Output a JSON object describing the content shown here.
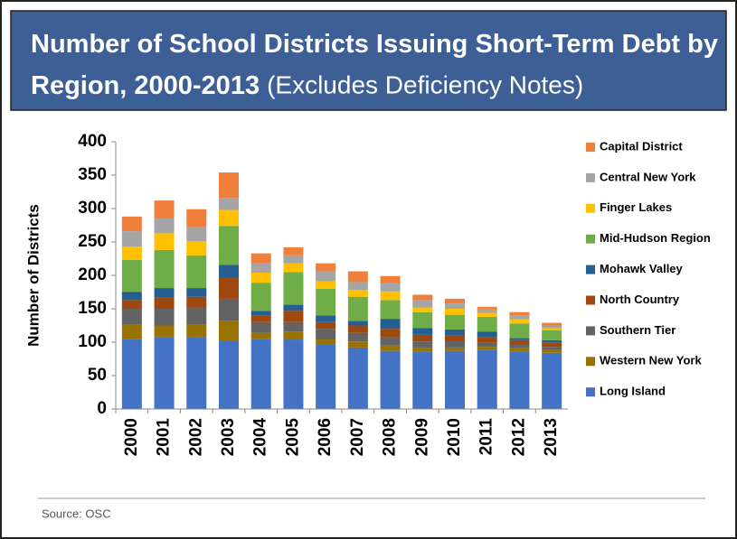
{
  "chart_data": {
    "type": "stacked_bar",
    "title": "Number of School Districts Issuing Short-Term Debt by Region, 2000-2013",
    "subtitle": "(Excludes Deficiency Notes)",
    "ylabel": "Number of Districts",
    "source": "Source: OSC",
    "categories": [
      "2000",
      "2001",
      "2002",
      "2003",
      "2004",
      "2005",
      "2006",
      "2007",
      "2008",
      "2009",
      "2010",
      "2011",
      "2012",
      "2013"
    ],
    "ylim": [
      0,
      400
    ],
    "yticks": [
      0,
      50,
      100,
      150,
      200,
      250,
      300,
      350,
      400
    ],
    "series": [
      {
        "name": "Long Island",
        "color": "#4472c4",
        "values": [
          105,
          108,
          108,
          102,
          105,
          104,
          96,
          92,
          87,
          86,
          87,
          88,
          86,
          84
        ]
      },
      {
        "name": "Western New York",
        "color": "#997300",
        "values": [
          22,
          17,
          19,
          30,
          9,
          12,
          8,
          9,
          8,
          5,
          5,
          5,
          5,
          4
        ]
      },
      {
        "name": "Southern Tier",
        "color": "#636363",
        "values": [
          23,
          25,
          25,
          33,
          16,
          14,
          16,
          13,
          13,
          10,
          10,
          6,
          5,
          5
        ]
      },
      {
        "name": "North Country",
        "color": "#9e480e",
        "values": [
          13,
          17,
          16,
          31,
          10,
          17,
          10,
          11,
          12,
          10,
          8,
          8,
          7,
          6
        ]
      },
      {
        "name": "Mohawk Valley",
        "color": "#255e91",
        "values": [
          12,
          14,
          13,
          20,
          7,
          9,
          10,
          7,
          15,
          10,
          9,
          9,
          3,
          4
        ]
      },
      {
        "name": "Mid-Hudson Region",
        "color": "#70ad47",
        "values": [
          48,
          57,
          49,
          58,
          42,
          49,
          40,
          36,
          28,
          24,
          22,
          22,
          22,
          15
        ]
      },
      {
        "name": "Finger Lakes",
        "color": "#ffc000",
        "values": [
          20,
          25,
          21,
          24,
          15,
          13,
          11,
          10,
          13,
          7,
          9,
          6,
          6,
          3
        ]
      },
      {
        "name": "Central New York",
        "color": "#a5a5a5",
        "values": [
          23,
          22,
          22,
          18,
          14,
          12,
          15,
          12,
          12,
          11,
          8,
          5,
          6,
          4
        ]
      },
      {
        "name": "Capital District",
        "color": "#f07f3c",
        "values": [
          22,
          27,
          26,
          38,
          15,
          12,
          12,
          16,
          11,
          8,
          7,
          4,
          5,
          4
        ]
      }
    ]
  }
}
